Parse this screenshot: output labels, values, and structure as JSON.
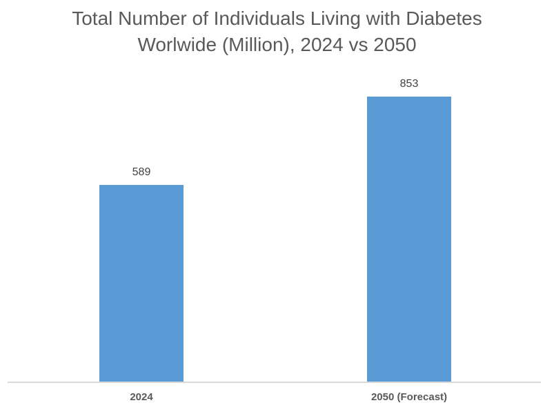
{
  "title": {
    "line1": "Total Number of Individuals Living with Diabetes",
    "line2": "Worlwide (Million), 2024 vs 2050"
  },
  "chart_data": {
    "type": "bar",
    "title": "Total Number of Individuals Living with Diabetes Worlwide (Million), 2024 vs 2050",
    "categories": [
      "2024",
      "2050 (Forecast)"
    ],
    "values": [
      589,
      853
    ],
    "data_labels": [
      "589",
      "853"
    ],
    "xlabel": "",
    "ylabel": "",
    "ylim": [
      0,
      900
    ],
    "grid": false,
    "legend": false,
    "y_axis_visible": false,
    "colors": {
      "bar_fill": "#5B9BD5",
      "axis_line": "#D9D9D9",
      "title_text": "#595959",
      "value_label_text": "#404040",
      "category_label_text": "#595959",
      "background": "#FFFFFF"
    }
  }
}
